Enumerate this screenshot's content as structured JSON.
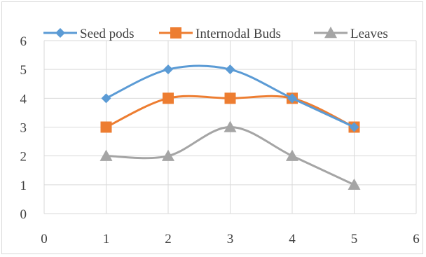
{
  "chart_data": {
    "type": "scatter",
    "title": "",
    "xlabel": "",
    "ylabel": "",
    "xlim": [
      0,
      6
    ],
    "ylim": [
      0,
      6
    ],
    "x_ticks": [
      "0",
      "1",
      "2",
      "3",
      "4",
      "5",
      "6"
    ],
    "y_ticks": [
      "0",
      "1",
      "2",
      "3",
      "4",
      "5",
      "6"
    ],
    "grid": true,
    "legend_position": "top",
    "smooth_lines": true,
    "series": [
      {
        "name": "Seed pods",
        "color": "#5b9bd5",
        "marker": "diamond",
        "x": [
          1,
          2,
          3,
          4,
          5
        ],
        "y": [
          4,
          5,
          5,
          4,
          3
        ]
      },
      {
        "name": "Internodal Buds",
        "color": "#ed7d31",
        "marker": "square",
        "x": [
          1,
          2,
          3,
          4,
          5
        ],
        "y": [
          3,
          4,
          4,
          4,
          3
        ]
      },
      {
        "name": "Leaves",
        "color": "#a5a5a5",
        "marker": "triangle",
        "x": [
          1,
          2,
          3,
          4,
          5
        ],
        "y": [
          2,
          2,
          3,
          2,
          1
        ]
      }
    ]
  }
}
